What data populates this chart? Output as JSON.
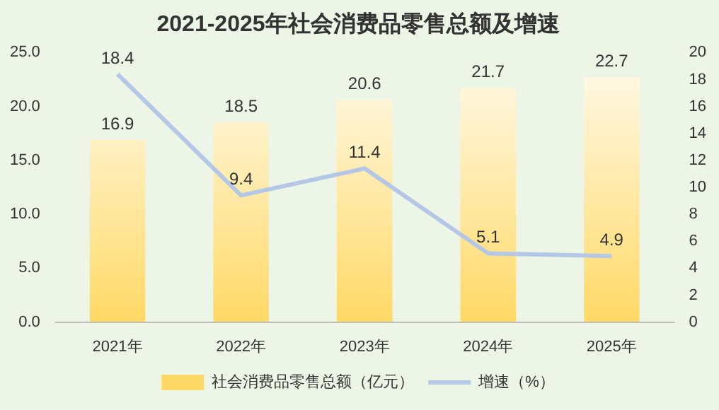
{
  "chart_data": {
    "type": "bar",
    "title": "2021-2025年社会消费品零售总额及增速",
    "categories": [
      "2021年",
      "2022年",
      "2023年",
      "2024年",
      "2025年"
    ],
    "series": [
      {
        "name": "社会消费品零售总额（亿元）",
        "color": "#ffd966",
        "values": [
          16.9,
          18.5,
          20.6,
          21.7,
          22.7
        ]
      },
      {
        "name": "增速（%）",
        "type": "line",
        "axis": "y2",
        "color": "#b4c7e7",
        "values": [
          18.4,
          9.4,
          11.4,
          5.1,
          4.9
        ]
      }
    ],
    "ylim": [
      0,
      25
    ],
    "yticks": [
      {
        "value": 0,
        "label": "0.0"
      },
      {
        "value": 5,
        "label": "5.0"
      },
      {
        "value": 10,
        "label": "10.0"
      },
      {
        "value": 15,
        "label": "15.0"
      },
      {
        "value": 20,
        "label": "20.0"
      },
      {
        "value": 25,
        "label": "25.0"
      }
    ],
    "y2lim": [
      0,
      20
    ],
    "y2ticks": [
      0,
      2,
      4,
      6,
      8,
      10,
      12,
      14,
      16,
      18,
      20
    ],
    "data_labels": true,
    "legend": "bottom",
    "grid": false,
    "marker": "none",
    "line_style": "solid"
  }
}
